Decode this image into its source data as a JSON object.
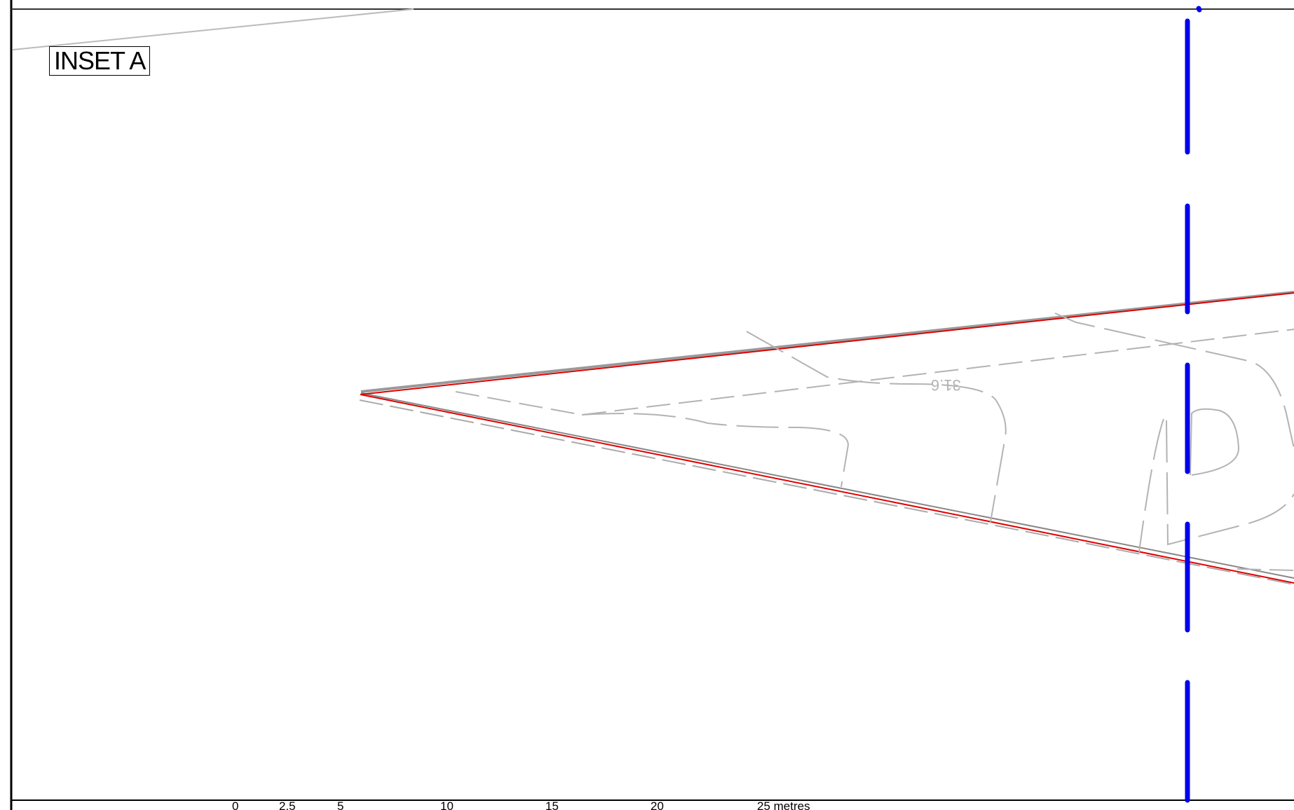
{
  "inset": {
    "label": "INSET A"
  },
  "spot_height": {
    "text": "31.6"
  },
  "scale_bar": {
    "ticks": [
      "0",
      "2.5",
      "5",
      "10",
      "15",
      "20",
      "25 metres"
    ]
  },
  "colors": {
    "boundary_red": "#e00000",
    "plan_line_grey": "#999999",
    "feature_grey": "#b3b3b3",
    "centreline_blue": "#0000ee",
    "frame_black": "#000000"
  }
}
